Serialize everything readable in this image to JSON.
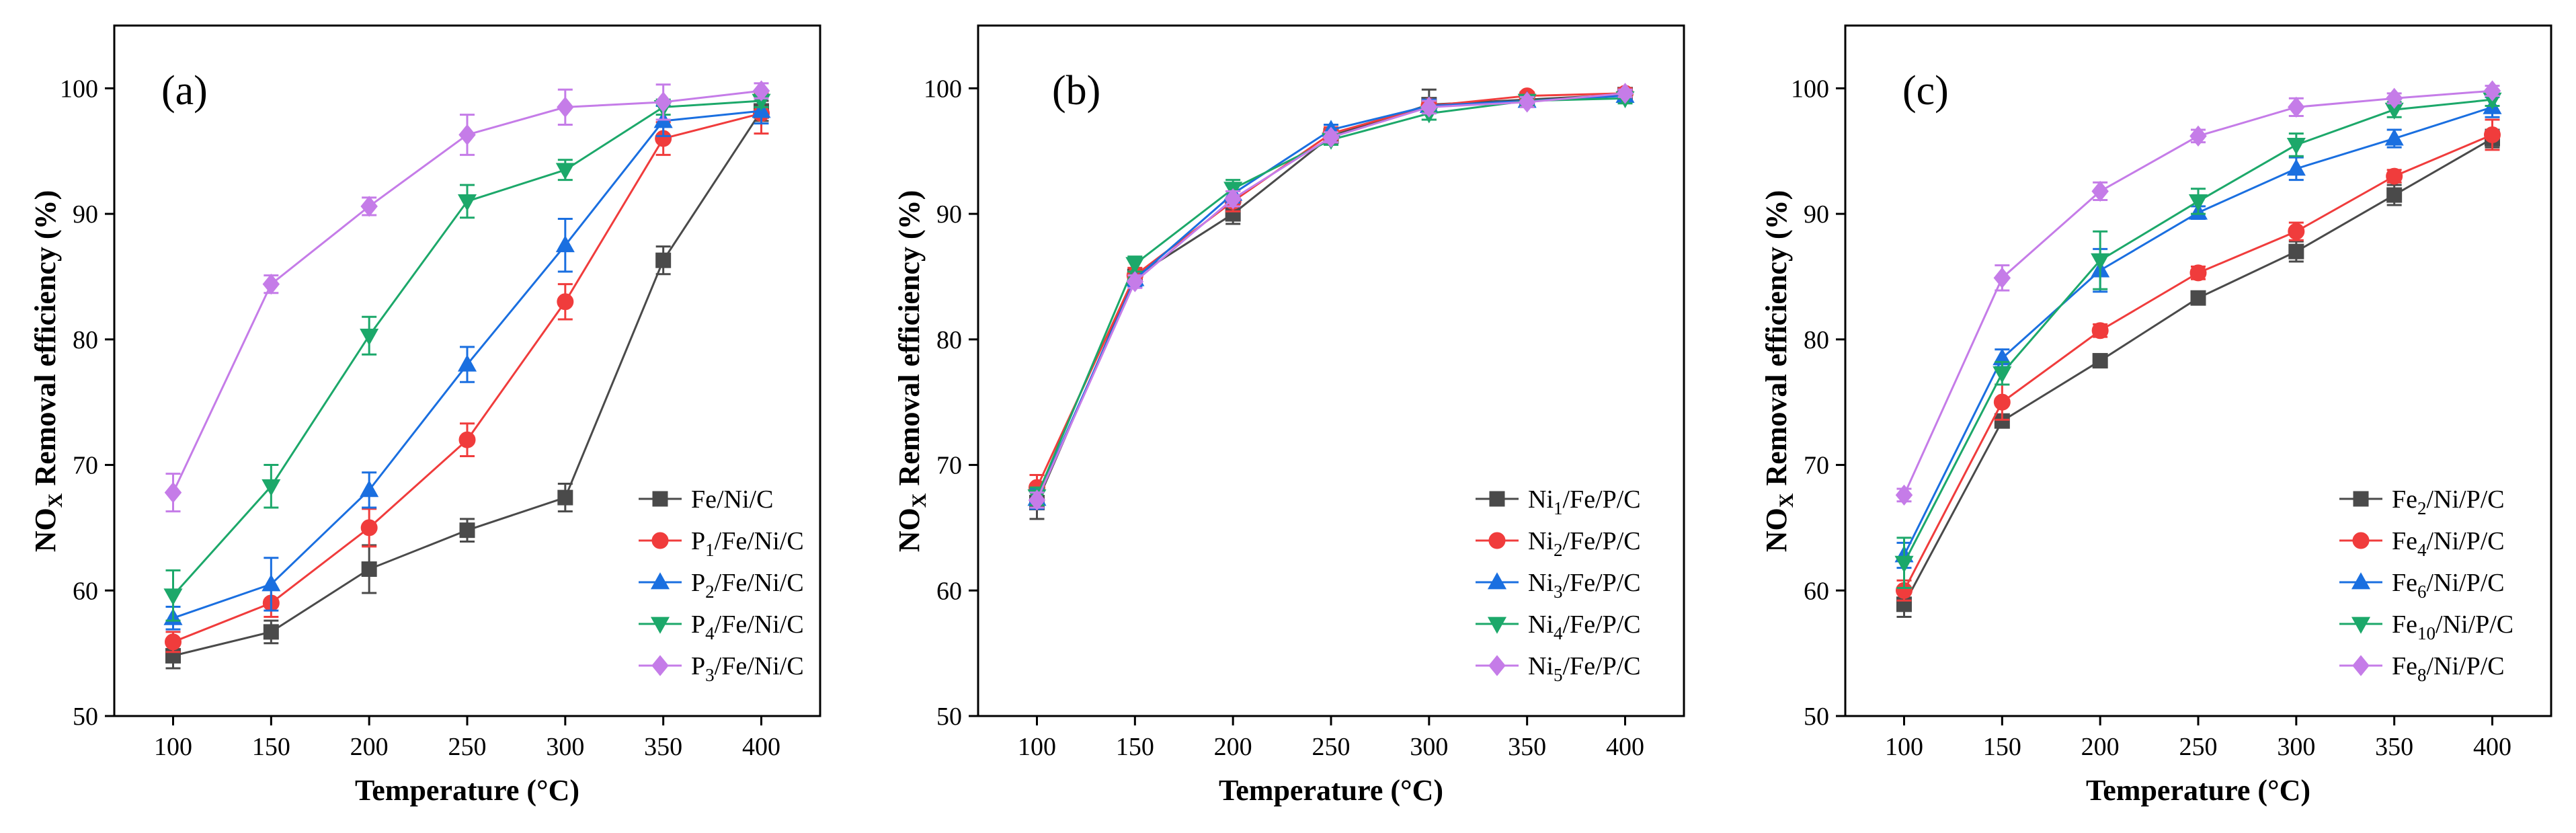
{
  "figure": {
    "colors": {
      "gray": "#4a4a4a",
      "red": "#f03c3c",
      "blue": "#1a6fe0",
      "green": "#1ca86a",
      "purple": "#c57ce8"
    }
  },
  "chart_data": [
    {
      "type": "line",
      "panel_label": "(a)",
      "xlabel": "Temperature (°C)",
      "ylabel_main": "NO",
      "ylabel_sub": "X",
      "ylabel_rest": " Removal efficiency (%)",
      "x": [
        100,
        150,
        200,
        250,
        300,
        350,
        400
      ],
      "xticks": [
        "100",
        "150",
        "200",
        "250",
        "300",
        "350",
        "400"
      ],
      "xlim": [
        70,
        430
      ],
      "ylim": [
        50,
        105
      ],
      "yticks": [
        "50",
        "60",
        "70",
        "80",
        "90",
        "100"
      ],
      "legend_position": "bottom-right",
      "series": [
        {
          "name": "Fe/Ni/C",
          "label_parts": [
            "Fe/Ni/C"
          ],
          "color": "#4a4a4a",
          "marker": "square",
          "values": [
            54.8,
            56.7,
            61.7,
            64.8,
            67.4,
            86.3,
            98.2
          ],
          "errors": [
            1.0,
            0.9,
            1.9,
            0.9,
            1.1,
            1.1,
            0.8
          ]
        },
        {
          "name": "P1/Fe/Ni/C",
          "label_parts": [
            "P",
            "1",
            "/Fe/Ni/C"
          ],
          "color": "#f03c3c",
          "marker": "circle",
          "values": [
            55.9,
            59.0,
            65.0,
            72.0,
            83.0,
            96.0,
            98.0
          ],
          "errors": [
            0.8,
            1.1,
            1.5,
            1.3,
            1.4,
            1.3,
            1.6
          ]
        },
        {
          "name": "P2/Fe/Ni/C",
          "label_parts": [
            "P",
            "2",
            "/Fe/Ni/C"
          ],
          "color": "#1a6fe0",
          "marker": "triangle-up",
          "values": [
            57.8,
            60.5,
            68.0,
            78.0,
            87.5,
            97.4,
            98.2
          ],
          "errors": [
            0.9,
            2.1,
            1.4,
            1.4,
            2.1,
            1.2,
            1.0
          ]
        },
        {
          "name": "P4/Fe/Ni/C",
          "label_parts": [
            "P",
            "4",
            "/Fe/Ni/C"
          ],
          "color": "#1ca86a",
          "marker": "triangle-down",
          "values": [
            59.6,
            68.3,
            80.3,
            91.0,
            93.5,
            98.5,
            99.0
          ],
          "errors": [
            2.0,
            1.7,
            1.5,
            1.3,
            0.8,
            0.6,
            0.5
          ]
        },
        {
          "name": "P3/Fe/Ni/C",
          "label_parts": [
            "P",
            "3",
            "/Fe/Ni/C"
          ],
          "color": "#c57ce8",
          "marker": "diamond",
          "values": [
            67.8,
            84.4,
            90.6,
            96.3,
            98.5,
            98.9,
            99.8
          ],
          "errors": [
            1.5,
            0.7,
            0.7,
            1.6,
            1.4,
            1.4,
            0.6
          ]
        }
      ]
    },
    {
      "type": "line",
      "panel_label": "(b)",
      "xlabel": "Temperature (°C)",
      "ylabel_main": "NO",
      "ylabel_sub": "X",
      "ylabel_rest": " Removal efficiency (%)",
      "x": [
        100,
        150,
        200,
        250,
        300,
        350,
        400
      ],
      "xticks": [
        "100",
        "150",
        "200",
        "250",
        "300",
        "350",
        "400"
      ],
      "xlim": [
        70,
        430
      ],
      "ylim": [
        50,
        105
      ],
      "yticks": [
        "50",
        "60",
        "70",
        "80",
        "90",
        "100"
      ],
      "legend_position": "bottom-right",
      "series": [
        {
          "name": "Ni1/Fe/P/C",
          "label_parts": [
            "Ni",
            "1",
            "/Fe/P/C"
          ],
          "color": "#4a4a4a",
          "marker": "square",
          "values": [
            67.0,
            85.0,
            90.0,
            96.2,
            98.7,
            99.1,
            99.5
          ],
          "errors": [
            1.3,
            0.6,
            0.8,
            0.5,
            1.2,
            0.5,
            0.5
          ]
        },
        {
          "name": "Ni2/Fe/P/C",
          "label_parts": [
            "Ni",
            "2",
            "/Fe/P/C"
          ],
          "color": "#f03c3c",
          "marker": "circle",
          "values": [
            68.2,
            85.1,
            91.0,
            96.4,
            98.6,
            99.4,
            99.6
          ],
          "errors": [
            1.0,
            0.6,
            0.8,
            0.5,
            0.5,
            0.3,
            0.4
          ]
        },
        {
          "name": "Ni3/Fe/P/C",
          "label_parts": [
            "Ni",
            "3",
            "/Fe/P/C"
          ],
          "color": "#1a6fe0",
          "marker": "triangle-up",
          "values": [
            67.3,
            84.8,
            91.6,
            96.7,
            98.6,
            99.0,
            99.4
          ],
          "errors": [
            0.8,
            0.6,
            0.7,
            0.4,
            0.5,
            0.4,
            0.4
          ]
        },
        {
          "name": "Ni4/Fe/P/C",
          "label_parts": [
            "Ni",
            "4",
            "/Fe/P/C"
          ],
          "color": "#1ca86a",
          "marker": "triangle-down",
          "values": [
            67.5,
            86.0,
            92.0,
            95.9,
            98.0,
            99.0,
            99.2
          ],
          "errors": [
            0.7,
            0.6,
            0.7,
            0.4,
            0.5,
            0.4,
            0.4
          ]
        },
        {
          "name": "Ni5/Fe/P/C",
          "label_parts": [
            "Ni",
            "5",
            "/Fe/P/C"
          ],
          "color": "#c57ce8",
          "marker": "diamond",
          "values": [
            67.2,
            84.6,
            91.2,
            96.1,
            98.5,
            98.9,
            99.6
          ],
          "errors": [
            0.6,
            0.5,
            0.6,
            0.4,
            0.5,
            0.4,
            0.3
          ]
        }
      ]
    },
    {
      "type": "line",
      "panel_label": "(c)",
      "xlabel": "Temperature (°C)",
      "ylabel_main": "NO",
      "ylabel_sub": "X",
      "ylabel_rest": " Removal efficiency (%)",
      "x": [
        100,
        150,
        200,
        250,
        300,
        350,
        400
      ],
      "xticks": [
        "100",
        "150",
        "200",
        "250",
        "300",
        "350",
        "400"
      ],
      "xlim": [
        70,
        430
      ],
      "ylim": [
        50,
        105
      ],
      "yticks": [
        "50",
        "60",
        "70",
        "80",
        "90",
        "100"
      ],
      "legend_position": "bottom-right",
      "series": [
        {
          "name": "Fe2/Ni/P/C",
          "label_parts": [
            "Fe",
            "2",
            "/Ni/P/C"
          ],
          "color": "#4a4a4a",
          "marker": "square",
          "values": [
            58.9,
            73.5,
            78.3,
            83.3,
            87.0,
            91.5,
            96.0
          ],
          "errors": [
            1.0,
            0.5,
            0.5,
            0.4,
            0.8,
            0.8,
            0.7
          ]
        },
        {
          "name": "Fe4/Ni/P/C",
          "label_parts": [
            "Fe",
            "4",
            "/Ni/P/C"
          ],
          "color": "#f03c3c",
          "marker": "circle",
          "values": [
            60.0,
            75.0,
            80.7,
            85.3,
            88.6,
            93.0,
            96.3
          ],
          "errors": [
            0.8,
            1.4,
            0.5,
            0.5,
            0.7,
            0.5,
            1.2
          ]
        },
        {
          "name": "Fe6/Ni/P/C",
          "label_parts": [
            "Fe",
            "6",
            "/Ni/P/C"
          ],
          "color": "#1a6fe0",
          "marker": "triangle-up",
          "values": [
            62.8,
            78.5,
            85.5,
            90.1,
            93.6,
            96.0,
            98.5
          ],
          "errors": [
            1.0,
            0.7,
            1.7,
            0.5,
            0.9,
            0.7,
            0.8
          ]
        },
        {
          "name": "Fe10/Ni/P/C",
          "label_parts": [
            "Fe",
            "10",
            "/Ni/P/C"
          ],
          "color": "#1ca86a",
          "marker": "triangle-down",
          "values": [
            62.2,
            77.3,
            86.3,
            91.0,
            95.5,
            98.3,
            99.1
          ],
          "errors": [
            2.0,
            0.9,
            2.3,
            1.0,
            0.9,
            0.6,
            0.5
          ]
        },
        {
          "name": "Fe8/Ni/P/C",
          "label_parts": [
            "Fe",
            "8",
            "/Ni/P/C"
          ],
          "color": "#c57ce8",
          "marker": "diamond",
          "values": [
            67.6,
            84.9,
            91.8,
            96.2,
            98.5,
            99.2,
            99.8
          ],
          "errors": [
            0.5,
            1.0,
            0.7,
            0.5,
            0.7,
            0.4,
            0.4
          ]
        }
      ]
    }
  ]
}
